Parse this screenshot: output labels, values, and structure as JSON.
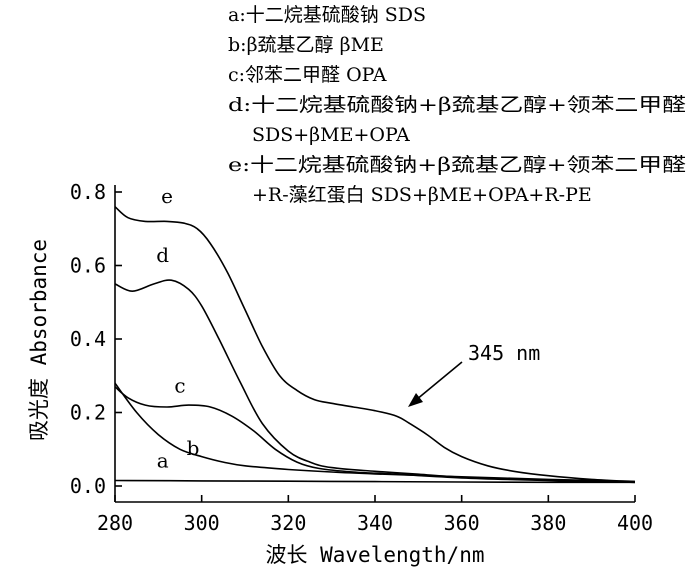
{
  "chart_data": {
    "type": "line",
    "xlabel": "波长 Wavelength/nm",
    "ylabel": "吸光度 Absorbance",
    "xlim": [
      280,
      400
    ],
    "ylim": [
      0,
      0.8
    ],
    "x_ticks": [
      "280",
      "300",
      "320",
      "340",
      "360",
      "380",
      "400"
    ],
    "y_ticks": [
      "0.0",
      "0.2",
      "0.4",
      "0.6",
      "0.8"
    ],
    "grid": false,
    "legend_lines": [
      "a:十二烷基硫酸钠 SDS",
      "b:β巯基乙醇 βME",
      "c:邻苯二甲醛 OPA",
      "d:十二烷基硫酸钠+β巯基乙醇+领苯二甲醛",
      "SDS+βME+OPA",
      "e:十二烷基硫酸钠+β巯基乙醇+领苯二甲醛",
      "+R-藻红蛋白 SDS+βME+OPA+R-PE"
    ],
    "annotation": {
      "text": "345 nm",
      "x": 345,
      "y": 0.2
    },
    "series": [
      {
        "label": "a",
        "x": [
          280,
          300,
          320,
          340,
          360,
          380,
          400
        ],
        "y": [
          0.015,
          0.014,
          0.013,
          0.012,
          0.011,
          0.01,
          0.01
        ]
      },
      {
        "label": "b",
        "x": [
          280,
          285,
          290,
          295,
          300,
          305,
          310,
          320,
          330,
          340,
          360,
          380,
          400
        ],
        "y": [
          0.28,
          0.2,
          0.14,
          0.1,
          0.08,
          0.065,
          0.055,
          0.045,
          0.038,
          0.033,
          0.025,
          0.018,
          0.012
        ]
      },
      {
        "label": "c",
        "x": [
          280,
          283,
          287,
          292,
          297,
          302,
          307,
          312,
          317,
          322,
          327,
          335,
          345,
          360,
          380,
          400
        ],
        "y": [
          0.27,
          0.24,
          0.22,
          0.215,
          0.22,
          0.215,
          0.19,
          0.15,
          0.1,
          0.065,
          0.048,
          0.038,
          0.032,
          0.022,
          0.015,
          0.01
        ]
      },
      {
        "label": "d",
        "x": [
          280,
          284,
          289,
          293,
          297,
          300,
          304,
          309,
          314,
          320,
          325,
          330,
          340,
          350,
          360,
          380,
          400
        ],
        "y": [
          0.55,
          0.53,
          0.55,
          0.56,
          0.535,
          0.49,
          0.4,
          0.28,
          0.17,
          0.095,
          0.065,
          0.05,
          0.04,
          0.032,
          0.024,
          0.016,
          0.01
        ]
      },
      {
        "label": "e",
        "x": [
          280,
          283,
          287,
          292,
          296,
          299,
          302,
          306,
          310,
          314,
          318,
          322,
          326,
          330,
          335,
          340,
          345,
          348,
          352,
          356,
          360,
          366,
          372,
          380,
          390,
          400
        ],
        "y": [
          0.76,
          0.73,
          0.72,
          0.72,
          0.715,
          0.7,
          0.66,
          0.58,
          0.48,
          0.38,
          0.3,
          0.26,
          0.235,
          0.225,
          0.215,
          0.205,
          0.19,
          0.17,
          0.14,
          0.105,
          0.08,
          0.055,
          0.04,
          0.028,
          0.018,
          0.012
        ]
      }
    ]
  }
}
